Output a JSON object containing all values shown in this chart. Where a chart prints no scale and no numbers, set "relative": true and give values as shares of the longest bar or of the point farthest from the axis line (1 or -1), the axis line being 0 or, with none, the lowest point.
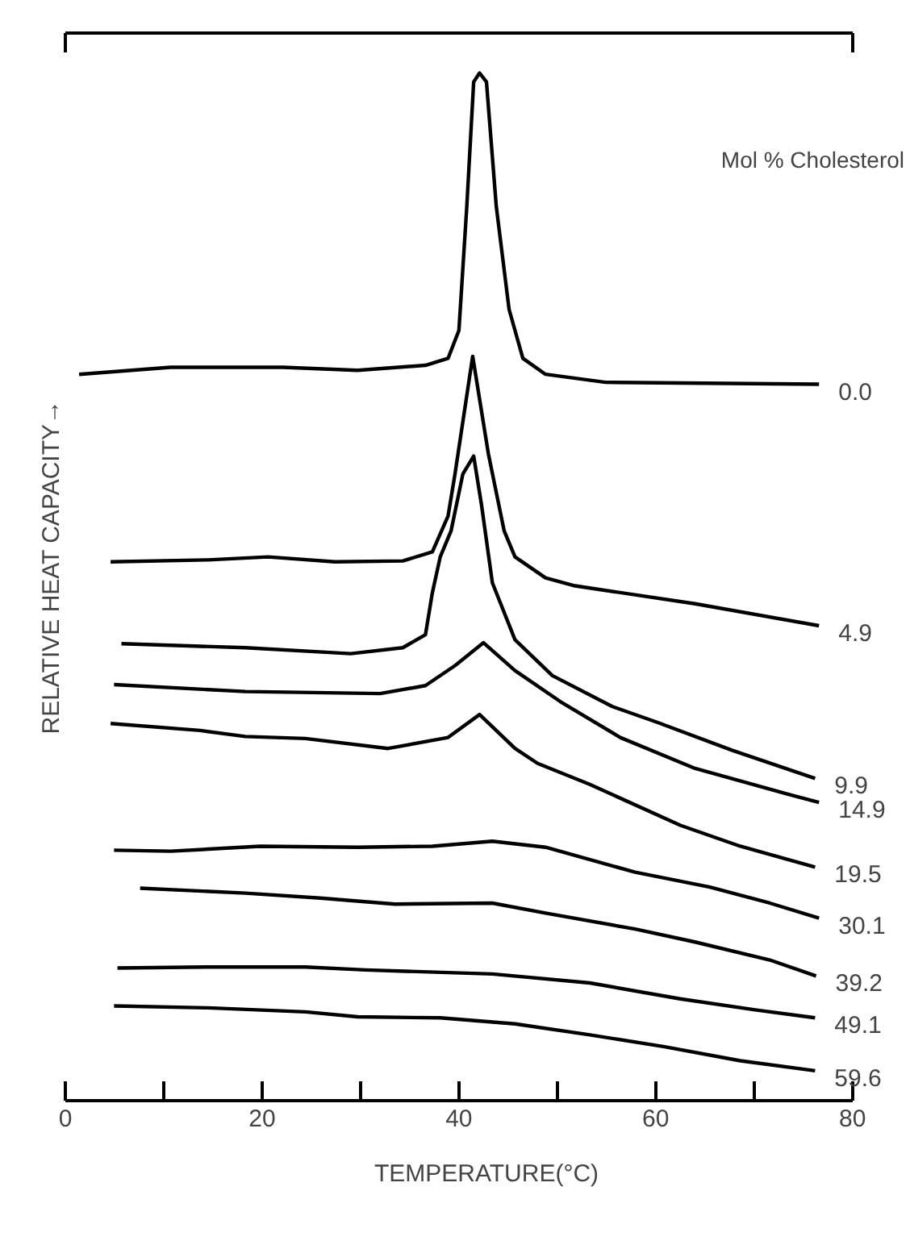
{
  "chart_data": {
    "type": "line",
    "relative": true,
    "xlabel": "TEMPERATURE(°C)",
    "ylabel": "RELATIVE HEAT CAPACITY→",
    "legend_title": "Mol % Cholesterol",
    "xlim": [
      0,
      80
    ],
    "xticks": [
      0,
      {
        "value": 10,
        "label": null
      },
      20,
      {
        "value": 30,
        "label": null
      },
      40,
      {
        "value": 50,
        "label": null
      },
      60,
      {
        "value": 70,
        "label": null
      },
      80
    ],
    "tick_labels": "x",
    "grid": false,
    "line_style": "solid",
    "series": [
      {
        "name": "0.0",
        "color": "#000000",
        "x": [
          1.4,
          10.7,
          22.1,
          29.7,
          36.6,
          38.9,
          40.0,
          40.8,
          41.5,
          42.1,
          42.8,
          43.8,
          45.1,
          46.5,
          48.8,
          54.9,
          76.6
        ],
        "values": [
          0.698,
          0.705,
          0.705,
          0.702,
          0.707,
          0.714,
          0.742,
          0.866,
          0.991,
          1.0,
          0.991,
          0.866,
          0.763,
          0.714,
          0.698,
          0.69,
          0.688
        ]
      },
      {
        "name": "4.9",
        "color": "#000000",
        "x": [
          4.6,
          14.5,
          20.6,
          27.4,
          34.3,
          37.3,
          38.9,
          39.6,
          41.4,
          43.0,
          44.6,
          45.7,
          48.8,
          51.8,
          64,
          76.6
        ],
        "values": [
          0.51,
          0.512,
          0.515,
          0.51,
          0.511,
          0.52,
          0.556,
          0.598,
          0.716,
          0.618,
          0.541,
          0.515,
          0.494,
          0.486,
          0.468,
          0.446
        ]
      },
      {
        "name": "9.9",
        "color": "#000000",
        "x": [
          5.7,
          18.3,
          29.0,
          34.3,
          36.6,
          37.3,
          38.1,
          39.2,
          40.4,
          41.5,
          42.3,
          43.4,
          45.7,
          49.5,
          55.6,
          60.2,
          67.8,
          76.2
        ],
        "values": [
          0.428,
          0.424,
          0.418,
          0.424,
          0.437,
          0.479,
          0.515,
          0.541,
          0.598,
          0.616,
          0.567,
          0.489,
          0.432,
          0.396,
          0.365,
          0.349,
          0.321,
          0.293
        ]
      },
      {
        "name": "14.9",
        "color": "#000000",
        "x": [
          4.95,
          18.3,
          32,
          36.6,
          39.6,
          42.5,
          45.7,
          50.3,
          56.4,
          64,
          73.5,
          76.6
        ],
        "values": [
          0.387,
          0.38,
          0.378,
          0.386,
          0.406,
          0.429,
          0.401,
          0.37,
          0.334,
          0.303,
          0.277,
          0.269
        ]
      },
      {
        "name": "19.5",
        "color": "#000000",
        "x": [
          4.6,
          13.7,
          18.3,
          24.4,
          32.8,
          38.9,
          42.1,
          45.7,
          48,
          53.3,
          62.5,
          68.6,
          76.2
        ],
        "values": [
          0.348,
          0.341,
          0.335,
          0.333,
          0.323,
          0.334,
          0.357,
          0.323,
          0.308,
          0.287,
          0.246,
          0.225,
          0.204
        ]
      },
      {
        "name": "30.1",
        "color": "#000000",
        "x": [
          4.95,
          10.7,
          19.8,
          29.7,
          37.3,
          43.4,
          48.8,
          57.9,
          65.5,
          71.6,
          76.6
        ],
        "values": [
          0.221,
          0.22,
          0.225,
          0.224,
          0.225,
          0.23,
          0.224,
          0.199,
          0.184,
          0.168,
          0.153
        ]
      },
      {
        "name": "39.2",
        "color": "#000000",
        "x": [
          7.6,
          18.3,
          25.9,
          33.5,
          43.4,
          48.8,
          57.9,
          64,
          71.6,
          76.3
        ],
        "values": [
          0.183,
          0.178,
          0.173,
          0.167,
          0.168,
          0.158,
          0.142,
          0.129,
          0.111,
          0.095
        ]
      },
      {
        "name": "49.1",
        "color": "#000000",
        "x": [
          5.3,
          14.5,
          24.4,
          30.5,
          43.4,
          53.3,
          62.5,
          70.1,
          76.2
        ],
        "values": [
          0.103,
          0.104,
          0.104,
          0.101,
          0.097,
          0.088,
          0.072,
          0.061,
          0.053
        ]
      },
      {
        "name": "59.6",
        "color": "#000000",
        "x": [
          4.95,
          14.5,
          24.4,
          29.7,
          38.1,
          45.7,
          53.3,
          60.9,
          68.6,
          76.2
        ],
        "values": [
          0.065,
          0.063,
          0.059,
          0.054,
          0.053,
          0.047,
          0.036,
          0.024,
          0.01,
          0.0
        ]
      }
    ]
  }
}
